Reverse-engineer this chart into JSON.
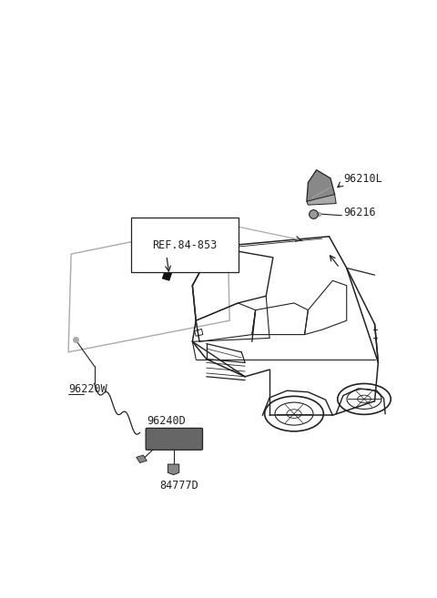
{
  "bg_color": "#ffffff",
  "line_color": "#444444",
  "dark_color": "#222222",
  "light_gray": "#999999",
  "mid_gray": "#777777",
  "ghost_color": "#aaaaaa",
  "fin_color": "#888888",
  "module_color": "#666666",
  "connector_color": "#888888",
  "strip_color": "#111111",
  "figsize": [
    4.8,
    6.57
  ],
  "dpi": 100,
  "label_96210L": "96210L",
  "label_96216": "96216",
  "label_ref": "REF.84-853",
  "label_96220W": "96220W",
  "label_96240D": "96240D",
  "label_84777D": "84777D"
}
